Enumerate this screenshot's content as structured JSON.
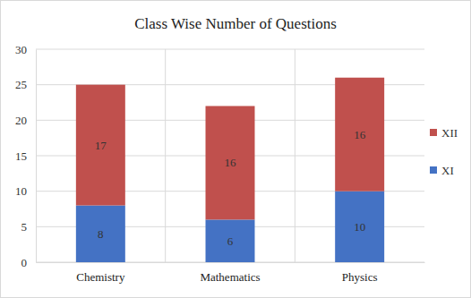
{
  "chart_data": {
    "type": "bar",
    "title": "Class Wise Number of Questions",
    "categories": [
      "Chemistry",
      "Mathematics",
      "Physics"
    ],
    "series": [
      {
        "name": "XI",
        "color": "#4472c4",
        "values": [
          8,
          6,
          10
        ]
      },
      {
        "name": "XII",
        "color": "#c0504d",
        "values": [
          17,
          16,
          16
        ]
      }
    ],
    "ylim": [
      0,
      30
    ],
    "yticks": [
      0,
      5,
      10,
      15,
      20,
      25,
      30
    ],
    "grid": true,
    "stacked": true,
    "data_labels": true,
    "legend": "right"
  }
}
